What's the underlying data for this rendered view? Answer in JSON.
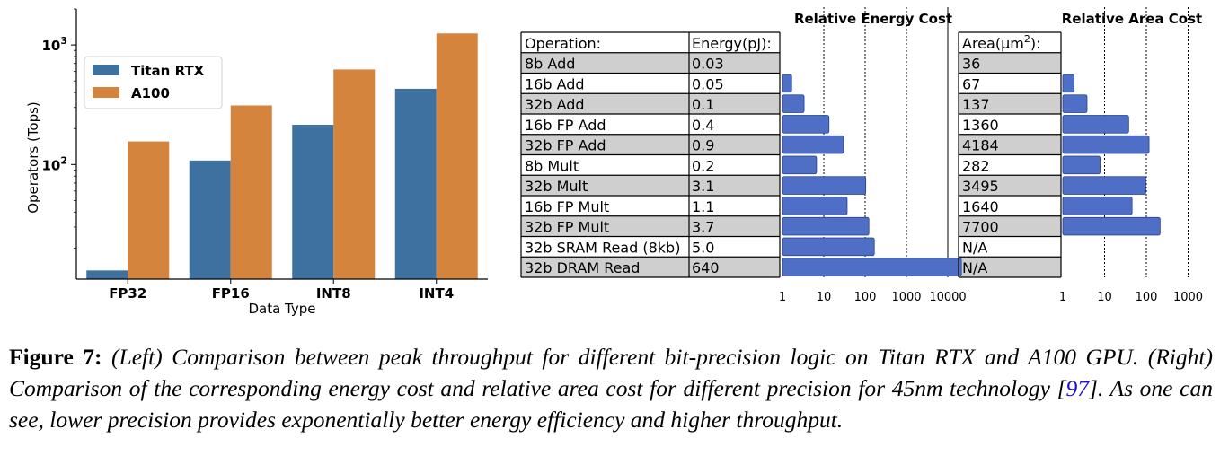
{
  "chart_data": [
    {
      "type": "bar",
      "scale": "log",
      "categories": [
        "FP32",
        "FP16",
        "INT8",
        "INT4"
      ],
      "series": [
        {
          "name": "Titan RTX",
          "color": "#3f71a0",
          "values": [
            13,
            108,
            215,
            430
          ]
        },
        {
          "name": "A100",
          "color": "#d5843d",
          "values": [
            156,
            312,
            624,
            1248
          ]
        }
      ],
      "xlabel": "Data Type",
      "ylabel": "Operators (Tops)",
      "ylim": [
        11,
        2000
      ],
      "yticks": [
        {
          "value": 100,
          "base": "10",
          "exp": "2"
        },
        {
          "value": 1000,
          "base": "10",
          "exp": "3"
        }
      ],
      "legend": "top-left"
    },
    {
      "type": "table",
      "columns": [
        "Operation:",
        "Energy(pJ):",
        "Area(",
        "μm",
        "2",
        "):"
      ],
      "rows": [
        {
          "op": "8b Add",
          "energy": "0.03",
          "area": "36",
          "e": 0.03,
          "a": 36,
          "shaded": true
        },
        {
          "op": "16b Add",
          "energy": "0.05",
          "area": "67",
          "e": 0.05,
          "a": 67,
          "shaded": false
        },
        {
          "op": "32b Add",
          "energy": "0.1",
          "area": "137",
          "e": 0.1,
          "a": 137,
          "shaded": true
        },
        {
          "op": "16b FP Add",
          "energy": "0.4",
          "area": "1360",
          "e": 0.4,
          "a": 1360,
          "shaded": false
        },
        {
          "op": "32b FP Add",
          "energy": "0.9",
          "area": "4184",
          "e": 0.9,
          "a": 4184,
          "shaded": true
        },
        {
          "op": "8b Mult",
          "energy": "0.2",
          "area": "282",
          "e": 0.2,
          "a": 282,
          "shaded": false
        },
        {
          "op": "32b Mult",
          "energy": "3.1",
          "area": "3495",
          "e": 3.1,
          "a": 3495,
          "shaded": true
        },
        {
          "op": "16b FP Mult",
          "energy": "1.1",
          "area": "1640",
          "e": 1.1,
          "a": 1640,
          "shaded": false
        },
        {
          "op": "32b FP Mult",
          "energy": "3.7",
          "area": "7700",
          "e": 3.7,
          "a": 7700,
          "shaded": true
        },
        {
          "op": "32b SRAM Read (8kb)",
          "energy": "5.0",
          "area": "N/A",
          "e": 5.0,
          "a": null,
          "shaded": false
        },
        {
          "op": "32b DRAM Read",
          "energy": "640",
          "area": "N/A",
          "e": 640,
          "a": null,
          "shaded": true
        }
      ],
      "energy_chart": {
        "title": "Relative Energy Cost",
        "ticks": [
          "1",
          "10",
          "100",
          "1000",
          "10000"
        ]
      },
      "area_chart": {
        "title": "Relative Area Cost",
        "ticks": [
          "1",
          "10",
          "100",
          "1000"
        ]
      },
      "bar_color": "#4f6fc6"
    }
  ],
  "caption": {
    "label": "Figure 7:",
    "text": "(Left) Comparison between peak throughput for different bit-precision logic on Titan RTX and A100 GPU. (Right) Comparison of the corresponding energy cost and relative area cost for different precision for 45nm technology [",
    "cite": "97",
    "text_end": "]. As one can see, lower precision provides exponentially better energy efficiency and higher throughput."
  }
}
